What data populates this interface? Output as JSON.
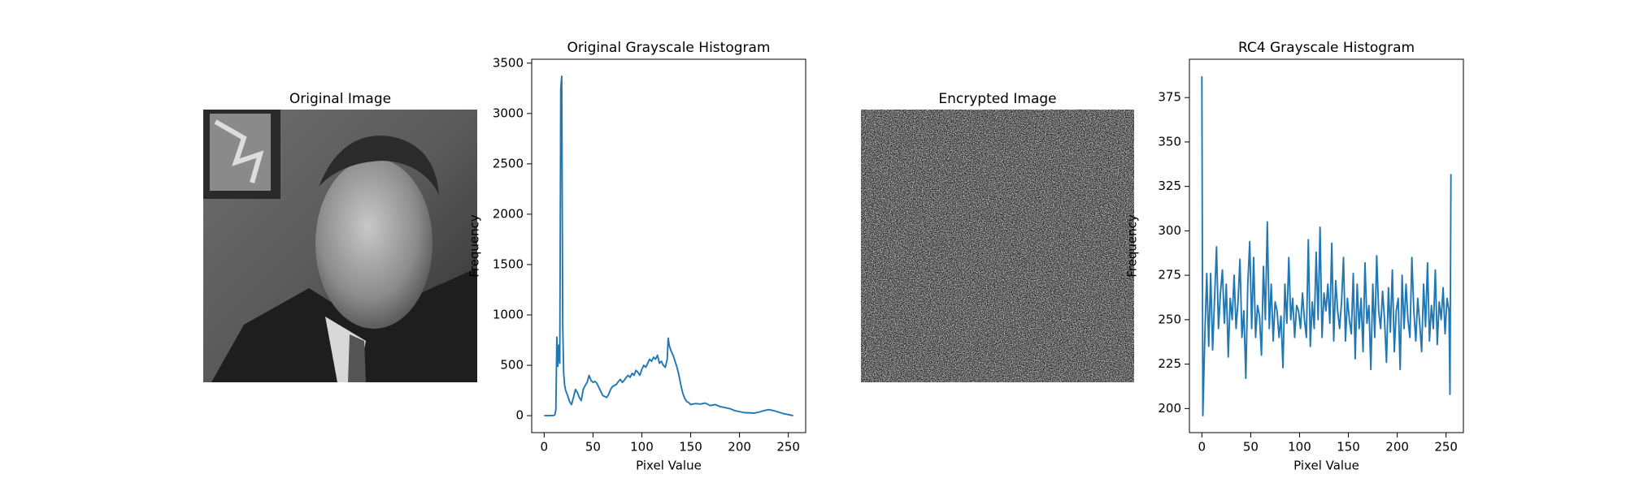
{
  "chart_data": [
    {
      "type": "image",
      "title": "Original Image"
    },
    {
      "type": "line",
      "title": "Original Grayscale Histogram",
      "x_label": "Pixel Value",
      "y_label": "Frequency",
      "color": "#1f77b4",
      "x": [
        0,
        5,
        10,
        11,
        12,
        13,
        14,
        15,
        16,
        17,
        18,
        19,
        20,
        21,
        22,
        24,
        26,
        28,
        30,
        32,
        34,
        36,
        38,
        40,
        42,
        44,
        46,
        48,
        50,
        52,
        54,
        56,
        58,
        60,
        62,
        64,
        66,
        68,
        70,
        72,
        74,
        76,
        78,
        80,
        82,
        84,
        86,
        88,
        90,
        92,
        94,
        96,
        98,
        100,
        102,
        104,
        106,
        108,
        110,
        112,
        114,
        116,
        118,
        120,
        122,
        124,
        126,
        127,
        128,
        130,
        132,
        134,
        136,
        138,
        140,
        142,
        144,
        146,
        148,
        150,
        155,
        160,
        165,
        170,
        175,
        180,
        185,
        190,
        195,
        200,
        205,
        210,
        215,
        220,
        225,
        230,
        235,
        240,
        245,
        250,
        255
      ],
      "values": [
        0,
        0,
        2,
        10,
        60,
        780,
        490,
        700,
        520,
        3250,
        3370,
        900,
        420,
        300,
        250,
        200,
        140,
        110,
        180,
        260,
        230,
        180,
        150,
        260,
        300,
        330,
        400,
        350,
        330,
        340,
        320,
        280,
        240,
        200,
        190,
        180,
        210,
        260,
        290,
        300,
        310,
        340,
        360,
        330,
        350,
        380,
        400,
        380,
        420,
        400,
        450,
        430,
        400,
        460,
        500,
        480,
        520,
        560,
        540,
        580,
        560,
        600,
        520,
        540,
        500,
        480,
        560,
        770,
        700,
        640,
        600,
        540,
        480,
        400,
        300,
        220,
        170,
        140,
        130,
        110,
        120,
        115,
        125,
        100,
        110,
        90,
        80,
        70,
        50,
        40,
        30,
        28,
        25,
        35,
        50,
        60,
        50,
        35,
        20,
        10,
        0
      ],
      "xlim": [
        -12.75,
        267.75
      ],
      "xticks": [
        0,
        50,
        100,
        150,
        200,
        250
      ],
      "ylim": [
        -168.5,
        3538.5
      ],
      "yticks": [
        0,
        500,
        1000,
        1500,
        2000,
        2500,
        3000,
        3500
      ]
    },
    {
      "type": "image",
      "title": "Encrypted Image"
    },
    {
      "type": "line",
      "title": "RC4 Grayscale Histogram",
      "x_label": "Pixel Value",
      "y_label": "Frequency",
      "color": "#1f77b4",
      "x": [
        0,
        1,
        3,
        5,
        7,
        9,
        11,
        13,
        15,
        17,
        19,
        21,
        23,
        25,
        27,
        29,
        31,
        33,
        35,
        37,
        39,
        41,
        43,
        45,
        47,
        49,
        51,
        53,
        55,
        57,
        59,
        61,
        63,
        65,
        67,
        69,
        71,
        73,
        75,
        77,
        79,
        81,
        83,
        85,
        87,
        89,
        91,
        93,
        95,
        97,
        99,
        101,
        103,
        105,
        107,
        109,
        111,
        113,
        115,
        117,
        119,
        121,
        123,
        125,
        127,
        129,
        131,
        133,
        135,
        137,
        139,
        141,
        143,
        145,
        147,
        149,
        151,
        153,
        155,
        157,
        159,
        161,
        163,
        165,
        167,
        169,
        171,
        173,
        175,
        177,
        179,
        181,
        183,
        185,
        187,
        189,
        191,
        193,
        195,
        197,
        199,
        201,
        203,
        205,
        207,
        209,
        211,
        213,
        215,
        217,
        219,
        221,
        223,
        225,
        227,
        229,
        231,
        233,
        235,
        237,
        239,
        241,
        243,
        245,
        247,
        249,
        251,
        253,
        254,
        255
      ],
      "values": [
        387,
        196,
        240,
        276,
        235,
        276,
        233,
        262,
        291,
        245,
        265,
        278,
        248,
        270,
        229,
        262,
        250,
        275,
        245,
        260,
        284,
        240,
        255,
        217,
        270,
        294,
        245,
        285,
        240,
        258,
        252,
        230,
        280,
        250,
        305,
        245,
        270,
        238,
        260,
        255,
        240,
        252,
        223,
        270,
        248,
        285,
        250,
        262,
        240,
        258,
        255,
        245,
        265,
        250,
        240,
        295,
        235,
        260,
        245,
        288,
        250,
        302,
        240,
        265,
        255,
        270,
        248,
        293,
        238,
        272,
        255,
        245,
        260,
        285,
        238,
        262,
        250,
        242,
        276,
        228,
        270,
        245,
        262,
        232,
        282,
        248,
        258,
        222,
        270,
        240,
        286,
        255,
        245,
        266,
        250,
        226,
        268,
        243,
        278,
        232,
        255,
        262,
        222,
        275,
        245,
        270,
        250,
        240,
        285,
        255,
        238,
        262,
        248,
        232,
        270,
        246,
        282,
        238,
        258,
        245,
        278,
        236,
        260,
        250,
        268,
        242,
        262,
        255,
        208,
        332
      ],
      "xlim": [
        -12.75,
        267.75
      ],
      "xticks": [
        0,
        50,
        100,
        150,
        200,
        250
      ],
      "ylim": [
        186.45,
        396.55
      ],
      "yticks": [
        200,
        225,
        250,
        275,
        300,
        325,
        350,
        375
      ]
    }
  ]
}
